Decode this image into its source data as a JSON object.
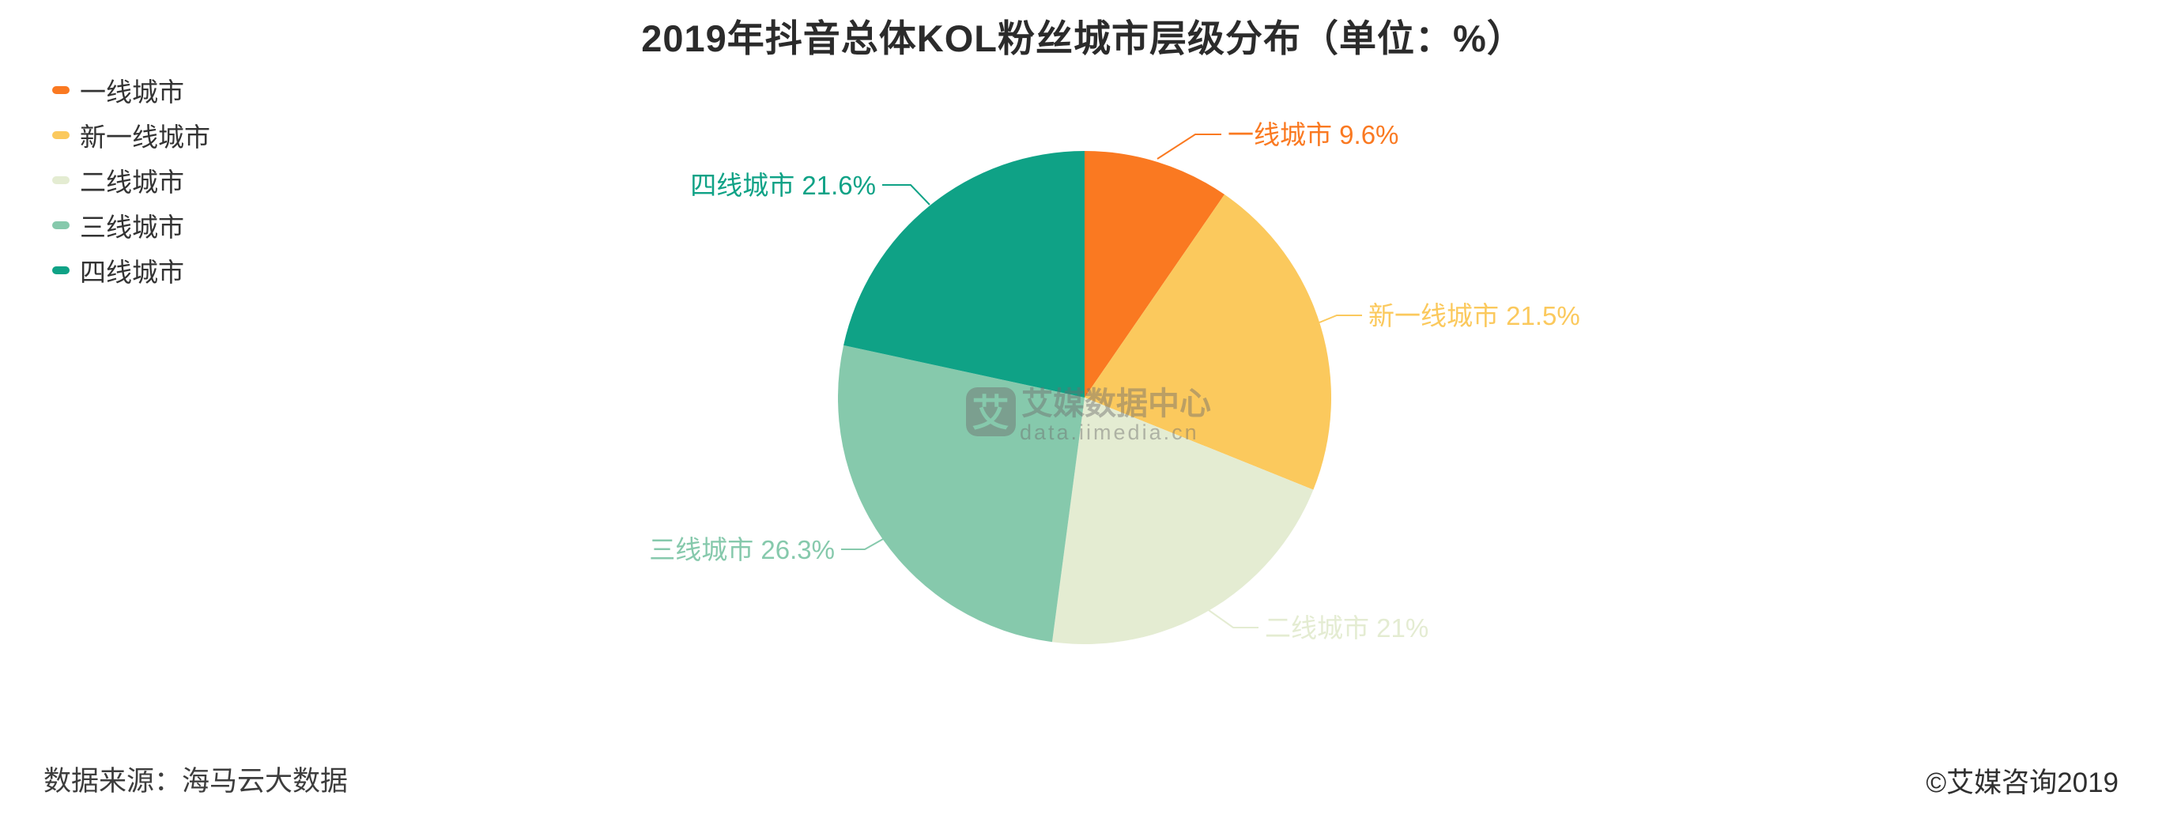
{
  "title": "2019年抖音总体KOL粉丝城市层级分布（单位：%）",
  "source_note": "数据来源：海马云大数据",
  "copyright": "©艾媒咨询2019",
  "watermark": {
    "logo_char": "艾",
    "name": "艾媒数据中心",
    "url": "data.iimedia.cn"
  },
  "chart_data": {
    "type": "pie",
    "title": "2019年抖音总体KOL粉丝城市层级分布（单位：%）",
    "unit": "%",
    "total": 100,
    "start_angle_deg": 0,
    "direction": "clockwise",
    "legend_position": "top-left",
    "categories": [
      "一线城市",
      "新一线城市",
      "二线城市",
      "三线城市",
      "四线城市"
    ],
    "values": [
      9.6,
      21.5,
      21,
      26.3,
      21.6
    ],
    "series": [
      {
        "name": "一线城市",
        "value": 9.6,
        "color": "#FA7921"
      },
      {
        "name": "新一线城市",
        "value": 21.5,
        "color": "#FBC95D"
      },
      {
        "name": "二线城市",
        "value": 21,
        "color": "#E4ECD2"
      },
      {
        "name": "三线城市",
        "value": 26.3,
        "color": "#86C9AC"
      },
      {
        "name": "四线城市",
        "value": 21.6,
        "color": "#0FA286"
      }
    ]
  }
}
